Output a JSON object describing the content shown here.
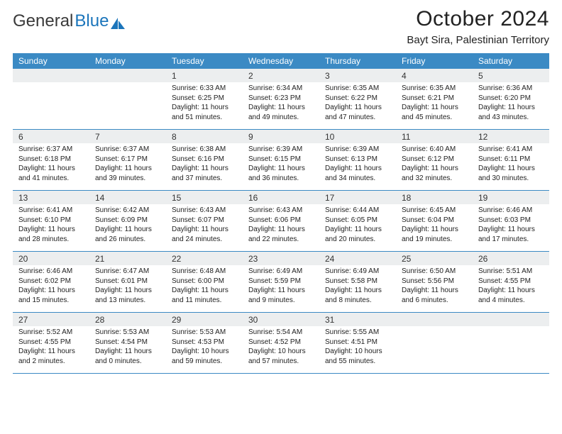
{
  "brand": {
    "part1": "General",
    "part2": "Blue"
  },
  "title": "October 2024",
  "location": "Bayt Sira, Palestinian Territory",
  "colors": {
    "header_bg": "#3b8ac4",
    "daynum_bg": "#eceeef",
    "rule": "#3b8ac4",
    "text": "#222222",
    "brand_blue": "#1b75bb"
  },
  "day_headers": [
    "Sunday",
    "Monday",
    "Tuesday",
    "Wednesday",
    "Thursday",
    "Friday",
    "Saturday"
  ],
  "weeks": [
    [
      {
        "num": "",
        "lines": []
      },
      {
        "num": "",
        "lines": []
      },
      {
        "num": "1",
        "lines": [
          "Sunrise: 6:33 AM",
          "Sunset: 6:25 PM",
          "Daylight: 11 hours and 51 minutes."
        ]
      },
      {
        "num": "2",
        "lines": [
          "Sunrise: 6:34 AM",
          "Sunset: 6:23 PM",
          "Daylight: 11 hours and 49 minutes."
        ]
      },
      {
        "num": "3",
        "lines": [
          "Sunrise: 6:35 AM",
          "Sunset: 6:22 PM",
          "Daylight: 11 hours and 47 minutes."
        ]
      },
      {
        "num": "4",
        "lines": [
          "Sunrise: 6:35 AM",
          "Sunset: 6:21 PM",
          "Daylight: 11 hours and 45 minutes."
        ]
      },
      {
        "num": "5",
        "lines": [
          "Sunrise: 6:36 AM",
          "Sunset: 6:20 PM",
          "Daylight: 11 hours and 43 minutes."
        ]
      }
    ],
    [
      {
        "num": "6",
        "lines": [
          "Sunrise: 6:37 AM",
          "Sunset: 6:18 PM",
          "Daylight: 11 hours and 41 minutes."
        ]
      },
      {
        "num": "7",
        "lines": [
          "Sunrise: 6:37 AM",
          "Sunset: 6:17 PM",
          "Daylight: 11 hours and 39 minutes."
        ]
      },
      {
        "num": "8",
        "lines": [
          "Sunrise: 6:38 AM",
          "Sunset: 6:16 PM",
          "Daylight: 11 hours and 37 minutes."
        ]
      },
      {
        "num": "9",
        "lines": [
          "Sunrise: 6:39 AM",
          "Sunset: 6:15 PM",
          "Daylight: 11 hours and 36 minutes."
        ]
      },
      {
        "num": "10",
        "lines": [
          "Sunrise: 6:39 AM",
          "Sunset: 6:13 PM",
          "Daylight: 11 hours and 34 minutes."
        ]
      },
      {
        "num": "11",
        "lines": [
          "Sunrise: 6:40 AM",
          "Sunset: 6:12 PM",
          "Daylight: 11 hours and 32 minutes."
        ]
      },
      {
        "num": "12",
        "lines": [
          "Sunrise: 6:41 AM",
          "Sunset: 6:11 PM",
          "Daylight: 11 hours and 30 minutes."
        ]
      }
    ],
    [
      {
        "num": "13",
        "lines": [
          "Sunrise: 6:41 AM",
          "Sunset: 6:10 PM",
          "Daylight: 11 hours and 28 minutes."
        ]
      },
      {
        "num": "14",
        "lines": [
          "Sunrise: 6:42 AM",
          "Sunset: 6:09 PM",
          "Daylight: 11 hours and 26 minutes."
        ]
      },
      {
        "num": "15",
        "lines": [
          "Sunrise: 6:43 AM",
          "Sunset: 6:07 PM",
          "Daylight: 11 hours and 24 minutes."
        ]
      },
      {
        "num": "16",
        "lines": [
          "Sunrise: 6:43 AM",
          "Sunset: 6:06 PM",
          "Daylight: 11 hours and 22 minutes."
        ]
      },
      {
        "num": "17",
        "lines": [
          "Sunrise: 6:44 AM",
          "Sunset: 6:05 PM",
          "Daylight: 11 hours and 20 minutes."
        ]
      },
      {
        "num": "18",
        "lines": [
          "Sunrise: 6:45 AM",
          "Sunset: 6:04 PM",
          "Daylight: 11 hours and 19 minutes."
        ]
      },
      {
        "num": "19",
        "lines": [
          "Sunrise: 6:46 AM",
          "Sunset: 6:03 PM",
          "Daylight: 11 hours and 17 minutes."
        ]
      }
    ],
    [
      {
        "num": "20",
        "lines": [
          "Sunrise: 6:46 AM",
          "Sunset: 6:02 PM",
          "Daylight: 11 hours and 15 minutes."
        ]
      },
      {
        "num": "21",
        "lines": [
          "Sunrise: 6:47 AM",
          "Sunset: 6:01 PM",
          "Daylight: 11 hours and 13 minutes."
        ]
      },
      {
        "num": "22",
        "lines": [
          "Sunrise: 6:48 AM",
          "Sunset: 6:00 PM",
          "Daylight: 11 hours and 11 minutes."
        ]
      },
      {
        "num": "23",
        "lines": [
          "Sunrise: 6:49 AM",
          "Sunset: 5:59 PM",
          "Daylight: 11 hours and 9 minutes."
        ]
      },
      {
        "num": "24",
        "lines": [
          "Sunrise: 6:49 AM",
          "Sunset: 5:58 PM",
          "Daylight: 11 hours and 8 minutes."
        ]
      },
      {
        "num": "25",
        "lines": [
          "Sunrise: 6:50 AM",
          "Sunset: 5:56 PM",
          "Daylight: 11 hours and 6 minutes."
        ]
      },
      {
        "num": "26",
        "lines": [
          "Sunrise: 5:51 AM",
          "Sunset: 4:55 PM",
          "Daylight: 11 hours and 4 minutes."
        ]
      }
    ],
    [
      {
        "num": "27",
        "lines": [
          "Sunrise: 5:52 AM",
          "Sunset: 4:55 PM",
          "Daylight: 11 hours and 2 minutes."
        ]
      },
      {
        "num": "28",
        "lines": [
          "Sunrise: 5:53 AM",
          "Sunset: 4:54 PM",
          "Daylight: 11 hours and 0 minutes."
        ]
      },
      {
        "num": "29",
        "lines": [
          "Sunrise: 5:53 AM",
          "Sunset: 4:53 PM",
          "Daylight: 10 hours and 59 minutes."
        ]
      },
      {
        "num": "30",
        "lines": [
          "Sunrise: 5:54 AM",
          "Sunset: 4:52 PM",
          "Daylight: 10 hours and 57 minutes."
        ]
      },
      {
        "num": "31",
        "lines": [
          "Sunrise: 5:55 AM",
          "Sunset: 4:51 PM",
          "Daylight: 10 hours and 55 minutes."
        ]
      },
      {
        "num": "",
        "lines": []
      },
      {
        "num": "",
        "lines": []
      }
    ]
  ]
}
